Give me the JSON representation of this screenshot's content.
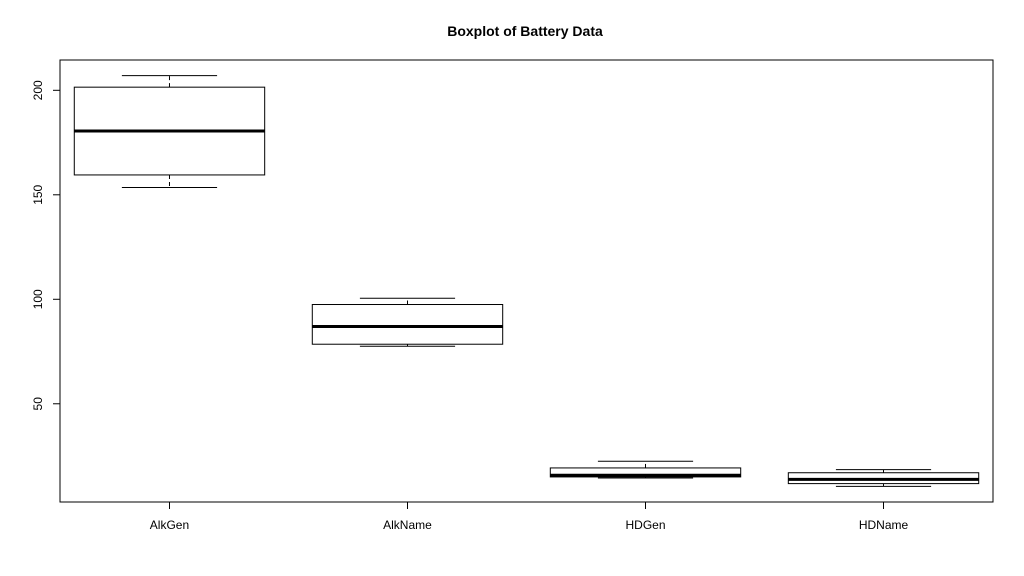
{
  "chart_data": {
    "type": "boxplot",
    "title": "Boxplot of Battery Data",
    "xlabel": "",
    "ylabel": "",
    "categories": [
      "AlkGen",
      "AlkName",
      "HDGen",
      "HDName"
    ],
    "boxes": [
      {
        "category": "AlkGen",
        "min": 153.5,
        "q1": 159.5,
        "median": 180.5,
        "q3": 201.5,
        "max": 207.0
      },
      {
        "category": "AlkName",
        "min": 77.5,
        "q1": 78.5,
        "median": 87.0,
        "q3": 97.5,
        "max": 100.5
      },
      {
        "category": "HDGen",
        "min": 14.5,
        "q1": 15.0,
        "median": 15.8,
        "q3": 19.3,
        "max": 22.5
      },
      {
        "category": "HDName",
        "min": 10.5,
        "q1": 11.8,
        "median": 13.8,
        "q3": 17.0,
        "max": 18.5
      }
    ],
    "y_ticks": [
      50,
      100,
      150,
      200
    ],
    "ylim": [
      3.0,
      214.5
    ],
    "grid": false,
    "legend": "none",
    "colors": {
      "stroke": "#000000",
      "box_fill": "#ffffff",
      "background": "#ffffff"
    }
  }
}
